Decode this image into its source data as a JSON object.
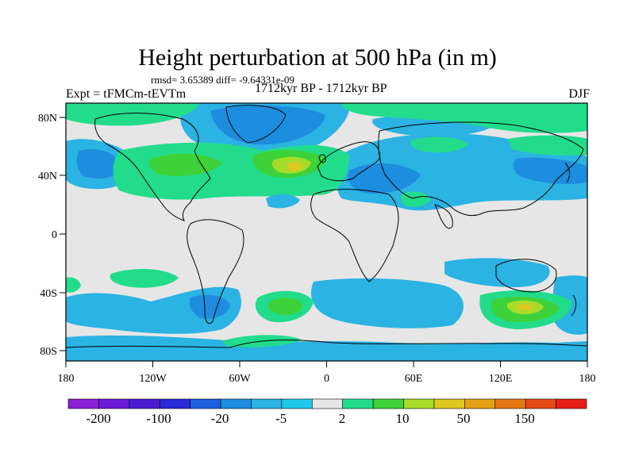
{
  "header": {
    "title": "Height perturbation at 500 hPa (in m)",
    "stats": "rmsd= 3.65389 diff= -9.64331e-09",
    "experiment": "Expt = tFMCm-tEVTm",
    "period": "1712kyr BP - 1712kyr BP",
    "season": "DJF"
  },
  "axes": {
    "lon_ticks": [
      "180",
      "120W",
      "60W",
      "0",
      "60E",
      "120E",
      "180"
    ],
    "lat_ticks": [
      "80N",
      "40N",
      "0",
      "40S",
      "80S"
    ]
  },
  "colorbar": {
    "colors": [
      "#8a1fd6",
      "#6a1cd6",
      "#4a1bd0",
      "#2a2ad6",
      "#1e5ee0",
      "#1d8ddd",
      "#2bb3e3",
      "#1fc8e8",
      "#e6e6e6",
      "#22dc8c",
      "#3ed23a",
      "#a8dc2a",
      "#dcc81e",
      "#e6a014",
      "#e67814",
      "#e64a14",
      "#e61e14"
    ],
    "labels": [
      "-200",
      "-100",
      "-20",
      "-5",
      "2",
      "10",
      "50",
      "150"
    ]
  }
}
